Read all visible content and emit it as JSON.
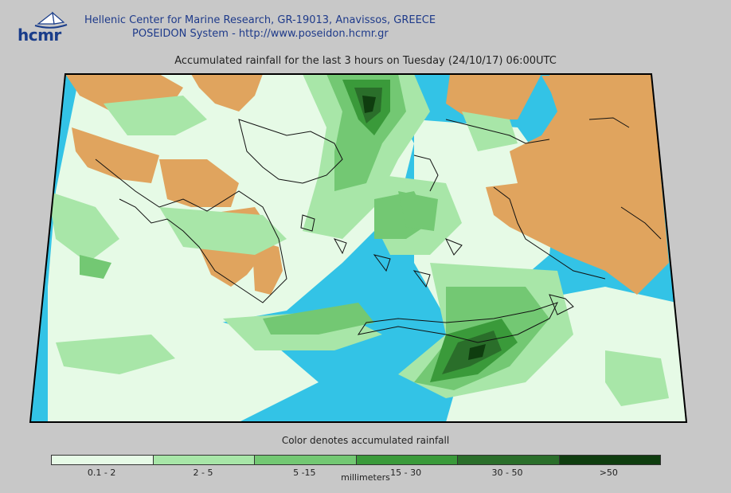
{
  "header": {
    "logo_text": "hcmr",
    "line1": "Hellenic Center for Marine Research, GR-19013, Anavissos, GREECE",
    "line2": "POSEIDON System - http://www.poseidon.hcmr.gr"
  },
  "title": "Accumulated rainfall for the last 3 hours on Tuesday (24/10/17) 06:00UTC",
  "map": {
    "colors": {
      "sea": "#33c3e6",
      "land": "#e0a45e",
      "outline": "#111111"
    }
  },
  "legend": {
    "title": "Color denotes accumulated rainfall",
    "units": "millimeters",
    "classes": [
      {
        "label": "0.1 - 2",
        "color": "#e6fae6"
      },
      {
        "label": "2 - 5",
        "color": "#a8e6a8"
      },
      {
        "label": "5 -15",
        "color": "#73c873"
      },
      {
        "label": "15 - 30",
        "color": "#3a9a3a"
      },
      {
        "label": "30 - 50",
        "color": "#2a6e2a"
      },
      {
        "label": ">50",
        "color": "#0f3d0f"
      }
    ]
  }
}
